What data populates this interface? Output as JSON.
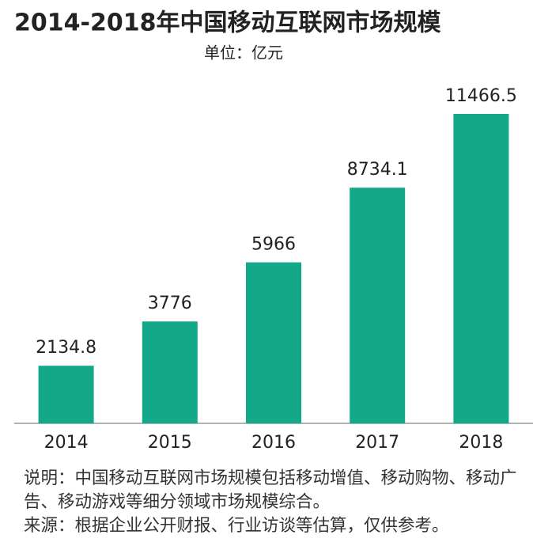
{
  "chart_data": {
    "type": "bar",
    "title": "2014-2018年中国移动互联网市场规模",
    "subtitle": "单位：亿元",
    "categories": [
      "2014",
      "2015",
      "2016",
      "2017",
      "2018"
    ],
    "values": [
      2134.8,
      3776,
      5966,
      8734.1,
      11466.5
    ],
    "color": "#14a88b",
    "note": "说明：中国移动互联网市场规模包括移动增值、移动购物、移动广告、移动游戏等细分领域市场规模综合。",
    "source": "来源：根据企业公开财报、行业访谈等估算，仅供参考。"
  }
}
